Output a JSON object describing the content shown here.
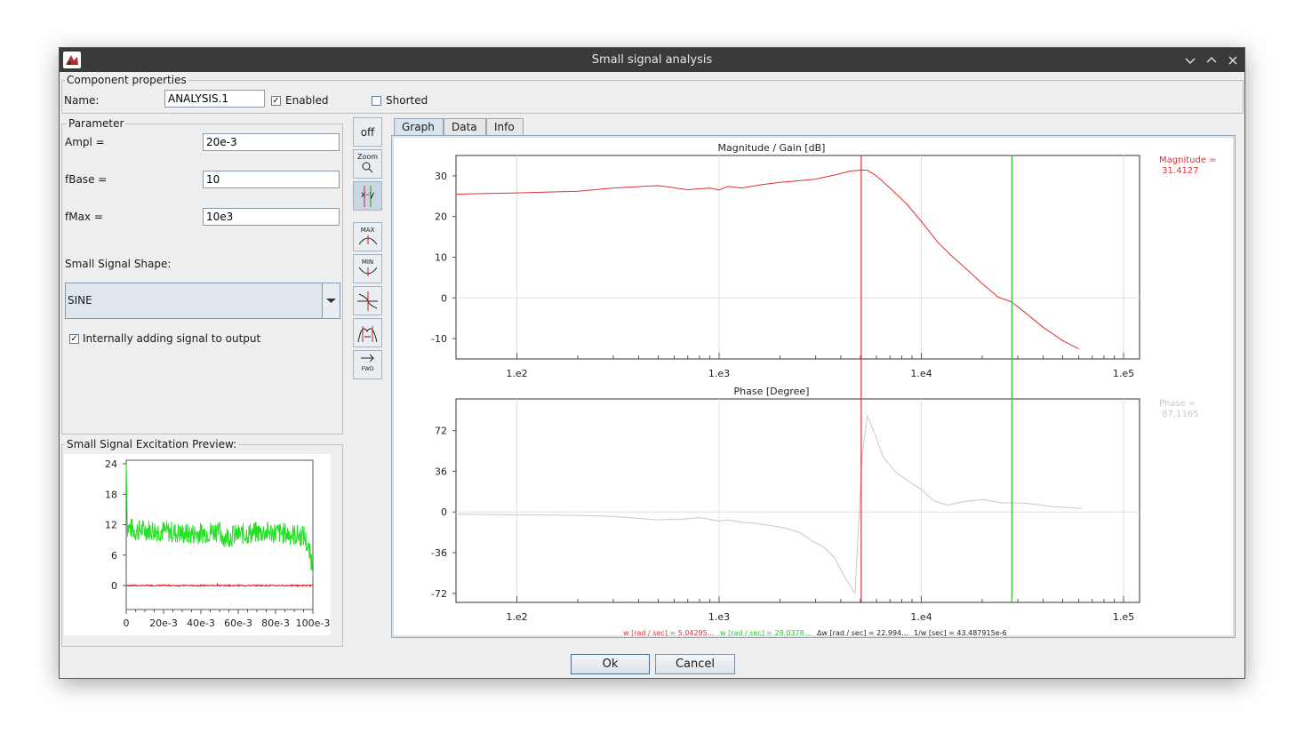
{
  "window": {
    "title": "Small signal analysis"
  },
  "component_properties": {
    "title": "Component properties",
    "name_label": "Name:",
    "name_value": "ANALYSIS.1",
    "enabled_label": "Enabled",
    "enabled": true,
    "shorted_label": "Shorted",
    "shorted": false
  },
  "parameter": {
    "title": "Parameter",
    "ampl_label": "Ampl =",
    "ampl_value": "20e-3",
    "fbase_label": "fBase =",
    "fbase_value": "10",
    "fmax_label": "fMax =",
    "fmax_value": "10e3",
    "shape_label": "Small Signal Shape:",
    "shape_value": "SINE",
    "internal_label": "Internally adding signal to output",
    "internal_checked": true
  },
  "preview": {
    "title": "Small Signal Excitation Preview:",
    "y_ticks": [
      "24",
      "18",
      "12",
      "6",
      "0"
    ],
    "x_ticks": [
      "0",
      "20e-3",
      "40e-3",
      "60e-3",
      "80e-3",
      "100e-3"
    ]
  },
  "toolbar": {
    "off_label": "off",
    "zoom_label": "Zoom",
    "xy_label": "x-y",
    "max_label": "MAX",
    "min_label": "MIN",
    "fwd_label": "FWD"
  },
  "tabs": [
    {
      "label": "Graph",
      "active": true
    },
    {
      "label": "Data",
      "active": false
    },
    {
      "label": "Info",
      "active": false
    }
  ],
  "chart_data": [
    {
      "type": "line",
      "title": "Magnitude / Gain [dB]",
      "x_scale": "log",
      "x_tick_labels": [
        "1.e2",
        "1.e3",
        "1.e4",
        "1.e5"
      ],
      "y_tick_labels": [
        "30",
        "20",
        "10",
        "0",
        "-10"
      ],
      "ylim": [
        -15,
        35
      ],
      "series": [
        {
          "color": "#e03030",
          "x": [
            50,
            100,
            200,
            300,
            500,
            700,
            900,
            1000,
            1100,
            1300,
            1600,
            2000,
            2500,
            3000,
            3800,
            4500,
            5000,
            5400,
            6000,
            7000,
            8500,
            10000,
            12000,
            14000,
            17000,
            20000,
            24000,
            28000,
            33000,
            40000,
            50000,
            60000
          ],
          "y": [
            25.5,
            25.8,
            26.2,
            27.0,
            27.6,
            26.6,
            27.0,
            26.5,
            27.4,
            27.0,
            27.8,
            28.4,
            28.8,
            29.2,
            30.3,
            31.2,
            31.4,
            31.4,
            30.0,
            27.0,
            23.0,
            18.8,
            13.8,
            10.5,
            6.8,
            3.5,
            0.2,
            -1.0,
            -3.8,
            -7.2,
            -10.5,
            -12.5
          ]
        }
      ],
      "markers": [
        {
          "x": 5042.95,
          "color": "#e03030"
        },
        {
          "x": 28037.8,
          "color": "#30c030"
        }
      ],
      "readout": "Magnitude =\n 31.4127"
    },
    {
      "type": "line",
      "title": "Phase [Degree]",
      "x_scale": "log",
      "x_tick_labels": [
        "1.e2",
        "1.e3",
        "1.e4",
        "1.e5"
      ],
      "y_tick_labels": [
        "72",
        "36",
        "0",
        "-36",
        "-72"
      ],
      "ylim": [
        -80,
        100
      ],
      "series": [
        {
          "color": "#c8c8c8",
          "x": [
            50,
            100,
            200,
            300,
            500,
            700,
            800,
            1000,
            1100,
            1300,
            1500,
            1800,
            2100,
            2500,
            2900,
            3300,
            3700,
            4200,
            4700,
            5100,
            5400,
            5800,
            6500,
            7500,
            9000,
            10000,
            11500,
            13500,
            16000,
            20000,
            25000,
            30000,
            36000,
            43000,
            52000,
            62000
          ],
          "y": [
            -2,
            -2.5,
            -3,
            -4,
            -7,
            -6,
            -5,
            -8,
            -7,
            -9,
            -10,
            -12,
            -14,
            -18,
            -26,
            -31,
            -40,
            -58,
            -72,
            50,
            85,
            72,
            48,
            35,
            25,
            20,
            10,
            6,
            9,
            11,
            8,
            8,
            7,
            5,
            4,
            3
          ]
        }
      ],
      "markers": [
        {
          "x": 5042.95,
          "color": "#e03030"
        },
        {
          "x": 28037.8,
          "color": "#30c030"
        }
      ],
      "readout": "Phase =\n 87.1165"
    }
  ],
  "status": {
    "w1": "w [rad / sec] = 5.04295...",
    "w2": "w [rad / sec] = 28.0378...",
    "dw": "Δw [rad / sec] = 22.994...",
    "inv": "1/w [sec] = 43.487915e-6"
  },
  "buttons": {
    "ok": "Ok",
    "cancel": "Cancel"
  }
}
